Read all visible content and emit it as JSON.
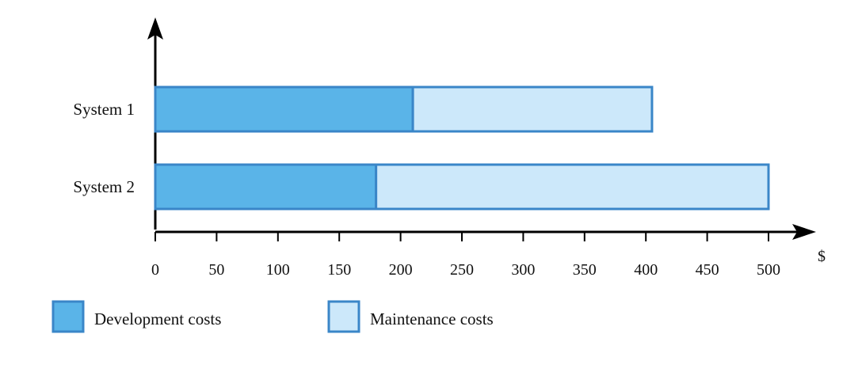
{
  "chart_data": {
    "type": "bar",
    "orientation": "horizontal",
    "stacked": true,
    "categories": [
      "System 1",
      "System 2"
    ],
    "series": [
      {
        "name": "Development costs",
        "values": [
          210,
          180
        ]
      },
      {
        "name": "Maintenance costs",
        "values": [
          195,
          320
        ]
      }
    ],
    "x_ticks": [
      0,
      50,
      100,
      150,
      200,
      250,
      300,
      350,
      400,
      450,
      500
    ],
    "x_tick_labels": [
      "0",
      "50",
      "100",
      "150",
      "200",
      "250",
      "300",
      "350",
      "400",
      "450",
      "500"
    ],
    "xlim": [
      0,
      500
    ],
    "x_unit": "$",
    "legend_position": "bottom",
    "grid": false,
    "colors": {
      "development": "#5ab4e8",
      "maintenance": "#cce8fa",
      "bar_edge": "#3a86c8",
      "axis": "#000000"
    }
  }
}
